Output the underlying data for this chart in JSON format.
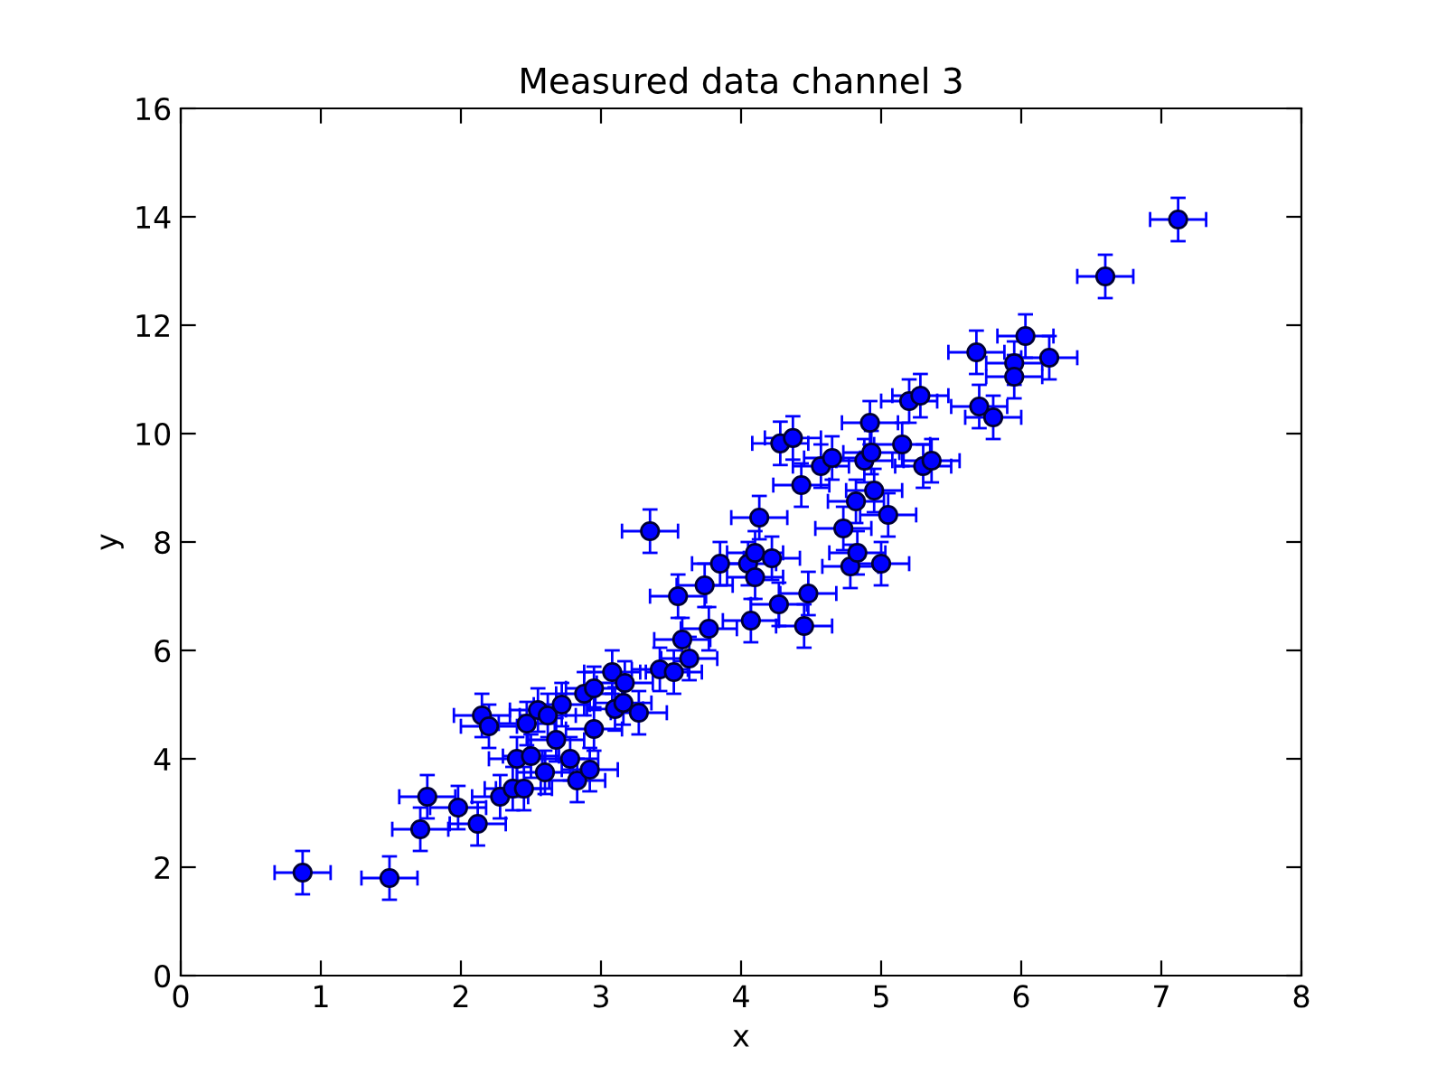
{
  "chart_data": {
    "type": "scatter",
    "title": "Measured data channel 3",
    "xlabel": "x",
    "ylabel": "y",
    "x": [
      0.87,
      1.49,
      1.71,
      1.76,
      1.98,
      2.12,
      2.15,
      2.2,
      2.28,
      2.37,
      2.4,
      2.45,
      2.47,
      2.5,
      2.55,
      2.6,
      2.62,
      2.68,
      2.72,
      2.78,
      2.83,
      2.88,
      2.92,
      2.95,
      2.95,
      3.08,
      3.1,
      3.16,
      3.17,
      3.27,
      3.35,
      3.42,
      3.52,
      3.55,
      3.58,
      3.63,
      3.74,
      3.77,
      3.85,
      4.05,
      4.07,
      4.1,
      4.1,
      4.13,
      4.22,
      4.27,
      4.28,
      4.37,
      4.43,
      4.45,
      4.48,
      4.57,
      4.65,
      4.73,
      4.78,
      4.82,
      4.83,
      4.88,
      4.92,
      4.93,
      4.95,
      5.0,
      5.05,
      5.15,
      5.2,
      5.28,
      5.3,
      5.36,
      5.68,
      5.7,
      5.8,
      5.95,
      5.95,
      6.03,
      6.2,
      6.6,
      7.12
    ],
    "values": [
      1.9,
      1.8,
      2.7,
      3.3,
      3.1,
      2.8,
      4.8,
      4.6,
      3.3,
      3.45,
      4.0,
      3.45,
      4.65,
      4.05,
      4.9,
      3.75,
      4.8,
      4.35,
      5.0,
      4.0,
      3.6,
      5.2,
      3.8,
      4.55,
      5.3,
      5.6,
      4.92,
      5.03,
      5.4,
      4.85,
      8.2,
      5.65,
      5.6,
      7.0,
      6.2,
      5.85,
      7.2,
      6.4,
      7.6,
      7.6,
      6.55,
      7.8,
      7.35,
      8.45,
      7.7,
      6.85,
      9.82,
      9.92,
      9.05,
      6.45,
      7.05,
      9.4,
      9.55,
      8.25,
      7.55,
      8.75,
      7.8,
      9.5,
      10.2,
      9.65,
      8.95,
      7.6,
      8.5,
      9.8,
      10.6,
      10.7,
      9.4,
      9.5,
      11.5,
      10.5,
      10.3,
      11.3,
      11.05,
      11.8,
      11.4,
      12.9,
      13.95
    ],
    "errors": [
      0.4,
      0.4,
      0.4,
      0.4,
      0.4,
      0.4,
      0.4,
      0.4,
      0.4,
      0.4,
      0.4,
      0.4,
      0.4,
      0.4,
      0.4,
      0.4,
      0.4,
      0.4,
      0.4,
      0.4,
      0.4,
      0.4,
      0.4,
      0.4,
      0.4,
      0.4,
      0.4,
      0.4,
      0.4,
      0.4,
      0.4,
      0.4,
      0.4,
      0.4,
      0.4,
      0.4,
      0.4,
      0.4,
      0.4,
      0.4,
      0.4,
      0.4,
      0.4,
      0.4,
      0.4,
      0.4,
      0.4,
      0.4,
      0.4,
      0.4,
      0.4,
      0.4,
      0.4,
      0.4,
      0.4,
      0.4,
      0.4,
      0.4,
      0.4,
      0.4,
      0.4,
      0.4,
      0.4,
      0.4,
      0.4,
      0.4,
      0.4,
      0.4,
      0.4,
      0.4,
      0.4,
      0.4,
      0.4,
      0.4,
      0.4,
      0.4,
      0.4
    ],
    "xerrors": [
      0.2,
      0.2,
      0.2,
      0.2,
      0.2,
      0.2,
      0.2,
      0.2,
      0.2,
      0.2,
      0.2,
      0.2,
      0.2,
      0.2,
      0.2,
      0.2,
      0.2,
      0.2,
      0.2,
      0.2,
      0.2,
      0.2,
      0.2,
      0.2,
      0.2,
      0.2,
      0.2,
      0.2,
      0.2,
      0.2,
      0.2,
      0.2,
      0.2,
      0.2,
      0.2,
      0.2,
      0.2,
      0.2,
      0.2,
      0.2,
      0.2,
      0.2,
      0.2,
      0.2,
      0.2,
      0.2,
      0.2,
      0.2,
      0.2,
      0.2,
      0.2,
      0.2,
      0.2,
      0.2,
      0.2,
      0.2,
      0.2,
      0.2,
      0.2,
      0.2,
      0.2,
      0.2,
      0.2,
      0.2,
      0.2,
      0.2,
      0.2,
      0.2,
      0.2,
      0.2,
      0.2,
      0.2,
      0.2,
      0.2,
      0.2,
      0.2,
      0.2
    ],
    "color": "#0000ff",
    "marker": "circle",
    "xlim": [
      0,
      8
    ],
    "ylim": [
      0,
      16
    ],
    "xticks": [
      0,
      1,
      2,
      3,
      4,
      5,
      6,
      7,
      8
    ],
    "yticks": [
      0,
      2,
      4,
      6,
      8,
      10,
      12,
      14,
      16
    ],
    "grid": false
  }
}
